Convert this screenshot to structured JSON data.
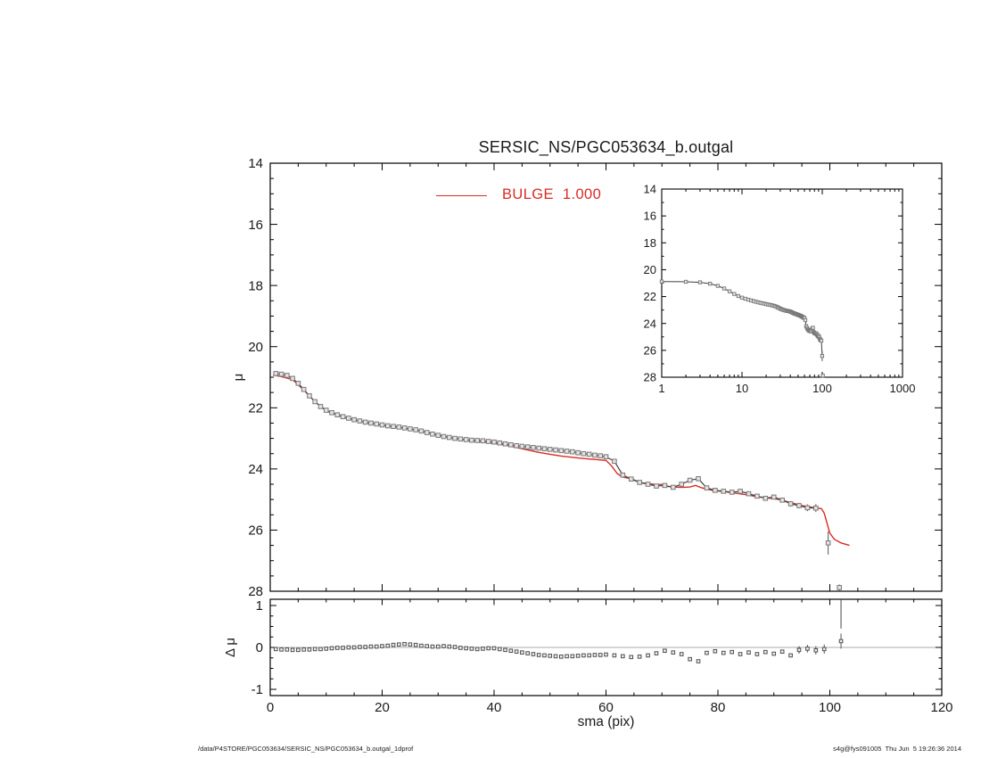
{
  "title": "SERSIC_NS/PGC053634_b.outgal",
  "legend": {
    "label": "BULGE  1.000",
    "color": "#d92b25"
  },
  "labels": {
    "mu": "μ",
    "delta_mu": "Δ μ",
    "sma": "sma (pix)"
  },
  "footer": {
    "left": "/data/P4STORE/PGC053634/SERSIC_NS/PGC053634_b.outgal_1dprof",
    "right": "s4g@fys091005  Thu Jun  5 19:26:36 2014"
  },
  "colors": {
    "model": "#d92b25",
    "data_edge": "#777777",
    "data_fill": "#e3e3e3",
    "data_line": "#3f3f3f",
    "residual_edge": "#4d4d4d",
    "residual_fill": "#f0f0f0",
    "zero_line": "#ababab",
    "frame": "#000000",
    "text": "#1a1a1a"
  },
  "chart_data": {
    "type": "line",
    "title": "SERSIC_NS/PGC053634_b.outgal",
    "panels": [
      {
        "name": "main",
        "xlabel": "sma (pix)",
        "ylabel": "μ",
        "xlim": [
          0,
          120
        ],
        "ylim": [
          28,
          14
        ],
        "xticks": [
          0,
          20,
          40,
          60,
          80,
          100,
          120
        ],
        "yticks": [
          14,
          16,
          18,
          20,
          22,
          24,
          26,
          28
        ],
        "x_minor_step": 5,
        "y_minor_step": 0.5,
        "x_tick_labels_shown": false,
        "grid": false
      },
      {
        "name": "inset",
        "xscale": "log",
        "xlabel": "sma (pix)",
        "ylabel": "μ",
        "xlim": [
          1,
          1000
        ],
        "ylim": [
          28,
          14
        ],
        "xticks": [
          1,
          10,
          100,
          1000
        ],
        "yticks": [
          14,
          16,
          18,
          20,
          22,
          24,
          26,
          28
        ],
        "grid": false
      },
      {
        "name": "residual",
        "xlabel": "sma (pix)",
        "ylabel": "Δ μ",
        "xlim": [
          0,
          120
        ],
        "ylim": [
          -1.15,
          1.15
        ],
        "xticks": [
          0,
          20,
          40,
          60,
          80,
          100,
          120
        ],
        "yticks": [
          1,
          0,
          -1
        ],
        "x_minor_step": 5,
        "y_minor_step": 0.25,
        "grid": false
      }
    ],
    "series": [
      {
        "name": "profile",
        "marker": "square",
        "sma": [
          1,
          2,
          3,
          4,
          5,
          6,
          7,
          8,
          9,
          10,
          11,
          12,
          13,
          14,
          15,
          16,
          17,
          18,
          19,
          20,
          21,
          22,
          23,
          24,
          25,
          26,
          27,
          28,
          29,
          30,
          31,
          32,
          33,
          34,
          35,
          36,
          37,
          38,
          39,
          40,
          41,
          42,
          43,
          44,
          45,
          46,
          47,
          48,
          49,
          50,
          51,
          52,
          53,
          54,
          55,
          56,
          57,
          58,
          59,
          60,
          61.5,
          63,
          64.5,
          66,
          67.5,
          69,
          70.5,
          72,
          73.5,
          75,
          76.5,
          78,
          79.5,
          81,
          82.5,
          84,
          85.5,
          87,
          88.5,
          90,
          91.5,
          93,
          94.5,
          96,
          97.5,
          99.7,
          101.7
        ],
        "mu": [
          20.88,
          20.9,
          20.94,
          21.04,
          21.2,
          21.4,
          21.61,
          21.8,
          21.96,
          22.08,
          22.16,
          22.23,
          22.29,
          22.34,
          22.39,
          22.43,
          22.47,
          22.5,
          22.53,
          22.56,
          22.59,
          22.61,
          22.63,
          22.66,
          22.69,
          22.72,
          22.76,
          22.81,
          22.86,
          22.9,
          22.94,
          22.97,
          23.0,
          23.02,
          23.04,
          23.06,
          23.07,
          23.08,
          23.1,
          23.12,
          23.15,
          23.18,
          23.21,
          23.24,
          23.26,
          23.28,
          23.3,
          23.32,
          23.34,
          23.36,
          23.38,
          23.4,
          23.42,
          23.44,
          23.47,
          23.5,
          23.52,
          23.55,
          23.57,
          23.6,
          23.75,
          24.2,
          24.33,
          24.44,
          24.5,
          24.56,
          24.54,
          24.6,
          24.5,
          24.37,
          24.32,
          24.62,
          24.7,
          24.73,
          24.76,
          24.73,
          24.81,
          24.89,
          24.96,
          24.92,
          25.02,
          25.14,
          25.2,
          25.27,
          25.28,
          26.42,
          27.88
        ]
      },
      {
        "name": "BULGE 1.000",
        "role": "model",
        "sma": [
          0.5,
          2,
          4,
          6,
          8,
          10,
          12,
          14,
          16,
          18,
          20,
          22,
          24,
          26,
          28,
          30,
          32,
          34,
          36,
          38,
          40,
          42,
          44,
          46,
          48,
          50,
          52,
          54,
          56,
          58,
          60,
          61,
          62,
          63,
          64,
          65,
          66,
          67,
          68,
          69,
          70,
          71,
          72,
          73,
          74,
          75,
          76,
          77,
          78,
          79,
          81,
          83,
          85,
          87,
          89,
          91,
          93,
          95,
          97,
          98.5,
          99,
          100,
          100.8,
          102,
          103.5
        ],
        "mu": [
          20.93,
          20.98,
          21.08,
          21.42,
          21.8,
          22.1,
          22.24,
          22.35,
          22.44,
          22.51,
          22.57,
          22.62,
          22.67,
          22.73,
          22.8,
          22.89,
          22.96,
          23.03,
          23.08,
          23.11,
          23.16,
          23.22,
          23.3,
          23.38,
          23.46,
          23.52,
          23.58,
          23.62,
          23.66,
          23.69,
          23.72,
          23.9,
          24.15,
          24.27,
          24.3,
          24.36,
          24.44,
          24.47,
          24.49,
          24.51,
          24.51,
          24.57,
          24.59,
          24.6,
          24.6,
          24.59,
          24.54,
          24.61,
          24.66,
          24.7,
          24.74,
          24.79,
          24.84,
          24.91,
          24.95,
          25.0,
          25.1,
          25.2,
          25.26,
          25.3,
          25.45,
          26.1,
          26.3,
          26.42,
          26.5
        ]
      }
    ],
    "errorbars": [
      [
        93,
        25.14,
        0.09
      ],
      [
        94.5,
        25.2,
        0.09
      ],
      [
        96,
        25.27,
        0.11
      ],
      [
        97.5,
        25.28,
        0.13
      ],
      [
        99.7,
        26.42,
        0.38
      ],
      [
        101.7,
        27.88,
        0.1
      ]
    ],
    "residual": {
      "sma": [
        1,
        2,
        3,
        4,
        5,
        6,
        7,
        8,
        9,
        10,
        11,
        12,
        13,
        14,
        15,
        16,
        17,
        18,
        19,
        20,
        21,
        22,
        23,
        24,
        25,
        26,
        27,
        28,
        29,
        30,
        31,
        32,
        33,
        34,
        35,
        36,
        37,
        38,
        39,
        40,
        41,
        42,
        43,
        44,
        45,
        46,
        47,
        48,
        49,
        50,
        51,
        52,
        53,
        54,
        55,
        56,
        57,
        58,
        59,
        60,
        61.5,
        63,
        64.5,
        66,
        67.5,
        69,
        70.5,
        72,
        73.5,
        75,
        76.5,
        78,
        79.5,
        81,
        82.5,
        84,
        85.5,
        87,
        88.5,
        90,
        91.5,
        93,
        94.5,
        96,
        97.5,
        99,
        102
      ],
      "dmu": [
        -0.04,
        -0.05,
        -0.05,
        -0.06,
        -0.06,
        -0.05,
        -0.05,
        -0.04,
        -0.04,
        -0.03,
        -0.02,
        -0.01,
        -0.01,
        0.0,
        0.0,
        0.01,
        0.01,
        0.02,
        0.02,
        0.03,
        0.04,
        0.06,
        0.07,
        0.08,
        0.07,
        0.06,
        0.04,
        0.03,
        0.02,
        0.02,
        0.03,
        0.02,
        0.01,
        -0.01,
        -0.02,
        -0.03,
        -0.04,
        -0.03,
        -0.02,
        -0.02,
        -0.04,
        -0.06,
        -0.08,
        -0.1,
        -0.12,
        -0.14,
        -0.16,
        -0.18,
        -0.19,
        -0.2,
        -0.21,
        -0.22,
        -0.21,
        -0.21,
        -0.2,
        -0.19,
        -0.19,
        -0.18,
        -0.18,
        -0.17,
        -0.19,
        -0.21,
        -0.23,
        -0.22,
        -0.19,
        -0.14,
        -0.08,
        -0.12,
        -0.16,
        -0.28,
        -0.33,
        -0.13,
        -0.09,
        -0.13,
        -0.11,
        -0.16,
        -0.12,
        -0.16,
        -0.11,
        -0.15,
        -0.1,
        -0.19,
        -0.06,
        -0.03,
        -0.07,
        -0.04,
        0.15
      ],
      "errorbars": [
        [
          94.5,
          -0.06,
          0.09
        ],
        [
          96,
          -0.03,
          0.09
        ],
        [
          97.5,
          -0.07,
          0.1
        ],
        [
          99,
          -0.04,
          0.11
        ],
        [
          102,
          0.15,
          0.18
        ]
      ],
      "spike": {
        "sma": 102,
        "from": 0.45,
        "to": 1.15
      }
    }
  }
}
